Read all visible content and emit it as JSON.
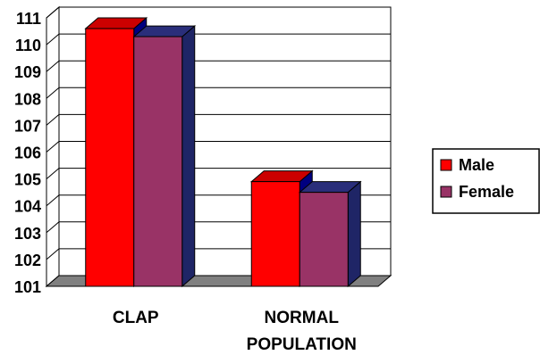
{
  "chart_data": {
    "type": "bar",
    "style": "3d-clustered-column",
    "categories": [
      [
        "CLAP"
      ],
      [
        "NORMAL",
        "POPULATION"
      ]
    ],
    "series": [
      {
        "name": "Male",
        "values": [
          110.6,
          104.9
        ],
        "color": "#ff0000",
        "side_color": "#000080",
        "top_color": "#cc0000"
      },
      {
        "name": "Female",
        "values": [
          110.3,
          104.5
        ],
        "color": "#993366",
        "side_color": "#1f2566",
        "top_color": "#2a2e7a"
      }
    ],
    "yticks": [
      101,
      102,
      103,
      104,
      105,
      106,
      107,
      108,
      109,
      110,
      111
    ],
    "ylim": [
      101,
      111
    ],
    "grid": true,
    "legend_position": "right",
    "title": "",
    "xlabel": "",
    "ylabel": "",
    "floor_color": "#808080"
  }
}
